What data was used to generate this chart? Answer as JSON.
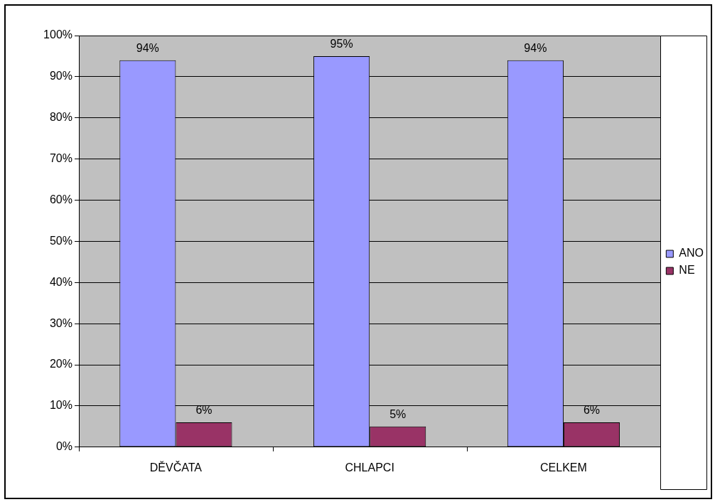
{
  "chart_data": {
    "type": "bar",
    "categories": [
      "DĚVČATA",
      "CHLAPCI",
      "CELKEM"
    ],
    "series": [
      {
        "name": "ANO",
        "color": "#9999ff",
        "values": [
          94,
          95,
          94
        ],
        "value_labels": [
          "94%",
          "95%",
          "94%"
        ]
      },
      {
        "name": "NE",
        "color": "#993366",
        "values": [
          6,
          5,
          6
        ],
        "value_labels": [
          "6%",
          "5%",
          "6%"
        ]
      }
    ],
    "ylim": [
      0,
      100
    ],
    "yticks": [
      {
        "value": 0,
        "label": "0%"
      },
      {
        "value": 10,
        "label": "10%"
      },
      {
        "value": 20,
        "label": "20%"
      },
      {
        "value": 30,
        "label": "30%"
      },
      {
        "value": 40,
        "label": "40%"
      },
      {
        "value": 50,
        "label": "50%"
      },
      {
        "value": 60,
        "label": "60%"
      },
      {
        "value": 70,
        "label": "70%"
      },
      {
        "value": 80,
        "label": "80%"
      },
      {
        "value": 90,
        "label": "90%"
      },
      {
        "value": 100,
        "label": "100%"
      }
    ],
    "grid": "y",
    "legend": "right"
  }
}
